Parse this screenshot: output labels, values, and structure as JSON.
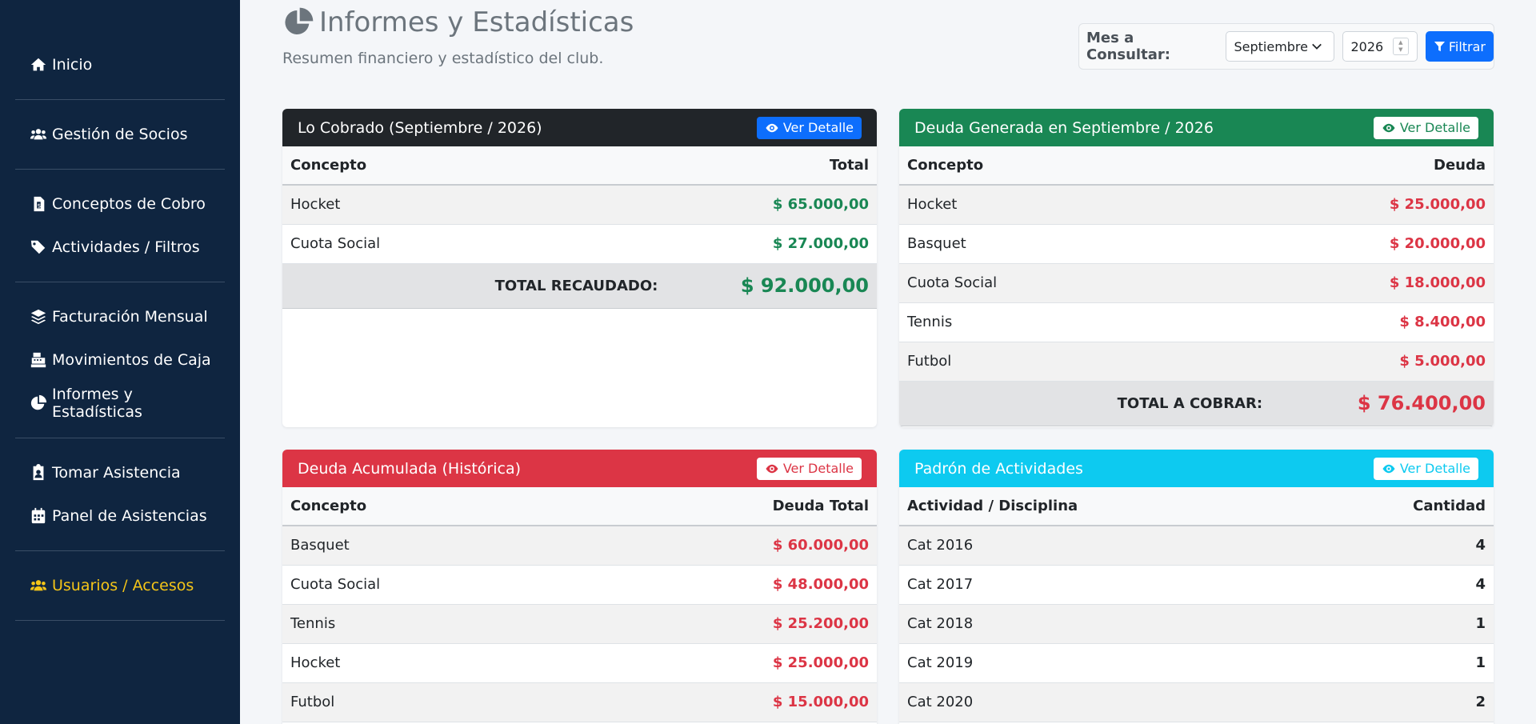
{
  "sidebar": {
    "groups": [
      [
        {
          "label": "Inicio",
          "icon": "home-icon"
        }
      ],
      [
        {
          "label": "Gestión de Socios",
          "icon": "users-icon"
        }
      ],
      [
        {
          "label": "Conceptos de Cobro",
          "icon": "invoice-icon"
        },
        {
          "label": "Actividades / Filtros",
          "icon": "tags-icon"
        }
      ],
      [
        {
          "label": "Facturación Mensual",
          "icon": "layers-icon"
        },
        {
          "label": "Movimientos de Caja",
          "icon": "cash-register-icon"
        },
        {
          "label": "Informes y Estadísticas",
          "icon": "pie-chart-icon"
        }
      ],
      [
        {
          "label": "Tomar Asistencia",
          "icon": "clipboard-user-icon"
        },
        {
          "label": "Panel de Asistencias",
          "icon": "calendar-icon"
        }
      ],
      [
        {
          "label": "Usuarios / Accesos",
          "icon": "users-cog-icon"
        }
      ]
    ],
    "highlight_color": "#f5c518"
  },
  "header": {
    "title": "Informes y Estadísticas",
    "subtitle": "Resumen financiero y estadístico del club."
  },
  "filter": {
    "label": "Mes a Consultar:",
    "month": "Septiembre",
    "year": "2026",
    "button": "Filtrar"
  },
  "cards": {
    "cobrado": {
      "title": "Lo Cobrado (Septiembre / 2026)",
      "detail": "Ver Detalle",
      "col1": "Concepto",
      "col2": "Total",
      "rows": [
        {
          "concept": "Hocket",
          "value": "$ 65.000,00"
        },
        {
          "concept": "Cuota Social",
          "value": "$ 27.000,00"
        }
      ],
      "total_label": "TOTAL RECAUDADO:",
      "total_value": "$ 92.000,00"
    },
    "deuda_generada": {
      "title": "Deuda Generada en Septiembre / 2026",
      "detail": "Ver Detalle",
      "col1": "Concepto",
      "col2": "Deuda",
      "rows": [
        {
          "concept": "Hocket",
          "value": "$ 25.000,00"
        },
        {
          "concept": "Basquet",
          "value": "$ 20.000,00"
        },
        {
          "concept": "Cuota Social",
          "value": "$ 18.000,00"
        },
        {
          "concept": "Tennis",
          "value": "$ 8.400,00"
        },
        {
          "concept": "Futbol",
          "value": "$ 5.000,00"
        }
      ],
      "total_label": "TOTAL A COBRAR:",
      "total_value": "$ 76.400,00"
    },
    "deuda_acumulada": {
      "title": "Deuda Acumulada (Histórica)",
      "detail": "Ver Detalle",
      "col1": "Concepto",
      "col2": "Deuda Total",
      "rows": [
        {
          "concept": "Basquet",
          "value": "$ 60.000,00"
        },
        {
          "concept": "Cuota Social",
          "value": "$ 48.000,00"
        },
        {
          "concept": "Tennis",
          "value": "$ 25.200,00"
        },
        {
          "concept": "Hocket",
          "value": "$ 25.000,00"
        },
        {
          "concept": "Futbol",
          "value": "$ 15.000,00"
        }
      ]
    },
    "padron": {
      "title": "Padrón de Actividades",
      "detail": "Ver Detalle",
      "col1": "Actividad / Disciplina",
      "col2": "Cantidad",
      "rows": [
        {
          "concept": "Cat 2016",
          "value": "4"
        },
        {
          "concept": "Cat 2017",
          "value": "4"
        },
        {
          "concept": "Cat 2018",
          "value": "1"
        },
        {
          "concept": "Cat 2019",
          "value": "1"
        },
        {
          "concept": "Cat 2020",
          "value": "2"
        }
      ]
    }
  },
  "colors": {
    "sidebar_bg": "#0f2540",
    "primary": "#0d6efd",
    "success": "#198754",
    "danger": "#dc3545",
    "info": "#0dcaf0",
    "dark": "#212529"
  }
}
